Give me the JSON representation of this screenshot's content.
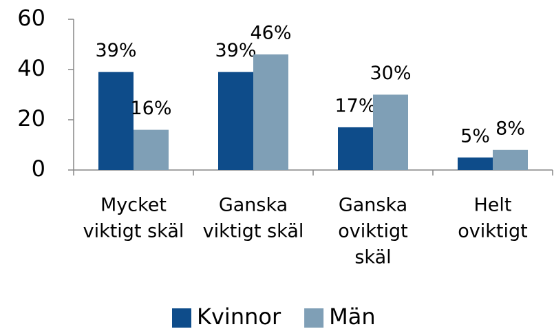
{
  "chart_data": {
    "type": "bar",
    "categories": [
      [
        "Mycket",
        "viktigt skäl"
      ],
      [
        "Ganska",
        "viktigt skäl"
      ],
      [
        "Ganska",
        "oviktigt",
        "skäl"
      ],
      [
        "Helt",
        "oviktigt"
      ]
    ],
    "series": [
      {
        "name": "Kvinnor",
        "color": "#0e4c8a",
        "values": [
          39,
          39,
          17,
          5
        ],
        "value_labels": [
          "39%",
          "39%",
          "17%",
          "5%"
        ]
      },
      {
        "name": "Män",
        "color": "#7f9fb6",
        "values": [
          16,
          46,
          30,
          8
        ],
        "value_labels": [
          "16%",
          "46%",
          "30%",
          "8%"
        ]
      }
    ],
    "ylim": [
      0,
      60
    ],
    "yticks": [
      0,
      20,
      40,
      60
    ],
    "grid": false,
    "legend": "bottom"
  }
}
